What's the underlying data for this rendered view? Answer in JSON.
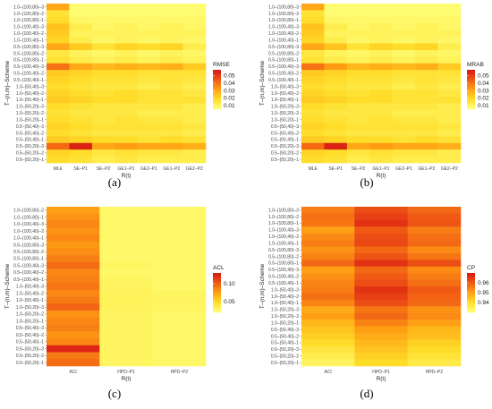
{
  "chart_data": [
    {
      "panel": "(a)",
      "type": "heatmap",
      "xlabel": "R(t)",
      "ylabel": "T–(n,m)–Scheme",
      "legend_title": "RMSE",
      "legend_ticks": [
        0.05,
        0.04,
        0.03,
        0.02,
        0.01
      ],
      "range": [
        0.005,
        0.058
      ],
      "categories": [
        "MLE",
        "SE–P1",
        "SE–P2",
        "GE1–P1",
        "GE2–P1",
        "GE1–P2",
        "GE2–P2"
      ],
      "rows": [
        "1.0–(100,80)–3",
        "1.0–(100,80)–2",
        "1.0–(100,80)–1",
        "1.0–(100,40)–3",
        "1.0–(100,40)–2",
        "1.0–(100,40)–1",
        "0.5–(100,80)–3",
        "0.5–(100,80)–2",
        "0.5–(100,80)–1",
        "0.5–(100,40)–3",
        "0.5–(100,40)–2",
        "0.5–(100,40)–1",
        "1.0–(50,40)–3",
        "1.0–(50,40)–2",
        "1.0–(50,40)–1",
        "1.0–(50,20)–3",
        "1.0–(50,20)–2",
        "1.0–(50,20)–1",
        "0.5–(50,40)–3",
        "0.5–(50,40)–2",
        "0.5–(50,40)–1",
        "0.5–(50,20)–3",
        "0.5–(50,20)–2",
        "0.5–(50,20)–1"
      ],
      "values": [
        [
          0.03,
          0.006,
          0.006,
          0.006,
          0.006,
          0.006,
          0.006
        ],
        [
          0.016,
          0.006,
          0.006,
          0.006,
          0.006,
          0.006,
          0.006
        ],
        [
          0.018,
          0.008,
          0.008,
          0.008,
          0.008,
          0.008,
          0.008
        ],
        [
          0.024,
          0.012,
          0.008,
          0.01,
          0.008,
          0.01,
          0.008
        ],
        [
          0.022,
          0.01,
          0.01,
          0.01,
          0.01,
          0.01,
          0.01
        ],
        [
          0.02,
          0.012,
          0.008,
          0.01,
          0.008,
          0.01,
          0.008
        ],
        [
          0.03,
          0.022,
          0.016,
          0.02,
          0.018,
          0.02,
          0.012
        ],
        [
          0.014,
          0.01,
          0.008,
          0.01,
          0.008,
          0.01,
          0.008
        ],
        [
          0.016,
          0.012,
          0.01,
          0.012,
          0.01,
          0.012,
          0.01
        ],
        [
          0.04,
          0.03,
          0.026,
          0.028,
          0.026,
          0.028,
          0.022
        ],
        [
          0.022,
          0.02,
          0.018,
          0.018,
          0.016,
          0.016,
          0.016
        ],
        [
          0.02,
          0.018,
          0.016,
          0.016,
          0.014,
          0.016,
          0.014
        ],
        [
          0.018,
          0.016,
          0.014,
          0.014,
          0.012,
          0.014,
          0.012
        ],
        [
          0.02,
          0.018,
          0.016,
          0.018,
          0.016,
          0.016,
          0.014
        ],
        [
          0.022,
          0.02,
          0.018,
          0.018,
          0.016,
          0.016,
          0.016
        ],
        [
          0.018,
          0.016,
          0.014,
          0.014,
          0.014,
          0.014,
          0.012
        ],
        [
          0.016,
          0.014,
          0.014,
          0.014,
          0.012,
          0.012,
          0.012
        ],
        [
          0.018,
          0.016,
          0.014,
          0.016,
          0.014,
          0.014,
          0.012
        ],
        [
          0.02,
          0.018,
          0.016,
          0.016,
          0.016,
          0.016,
          0.014
        ],
        [
          0.018,
          0.016,
          0.014,
          0.014,
          0.014,
          0.014,
          0.012
        ],
        [
          0.022,
          0.02,
          0.018,
          0.018,
          0.016,
          0.018,
          0.016
        ],
        [
          0.042,
          0.056,
          0.03,
          0.032,
          0.03,
          0.03,
          0.028
        ],
        [
          0.02,
          0.018,
          0.014,
          0.016,
          0.014,
          0.014,
          0.012
        ],
        [
          0.018,
          0.016,
          0.012,
          0.014,
          0.012,
          0.012,
          0.012
        ]
      ]
    },
    {
      "panel": "(b)",
      "type": "heatmap",
      "xlabel": "R(t)",
      "ylabel": "T–(n,m)–Scheme",
      "legend_title": "MRAB",
      "legend_ticks": [
        0.05,
        0.04,
        0.03,
        0.02,
        0.01
      ],
      "range": [
        0.005,
        0.058
      ],
      "categories": [
        "MLE",
        "SE–P1",
        "SE–P2",
        "GE1–P1",
        "GE2–P1",
        "GE1–P2",
        "GE2–P2"
      ],
      "rows": [
        "1.0–(100,80)–3",
        "1.0–(100,80)–2",
        "1.0–(100,80)–1",
        "1.0–(100,40)–3",
        "1.0–(100,40)–2",
        "1.0–(100,40)–1",
        "0.5–(100,80)–3",
        "0.5–(100,80)–2",
        "0.5–(100,80)–1",
        "0.5–(100,40)–3",
        "0.5–(100,40)–2",
        "0.5–(100,40)–1",
        "1.0–(50,40)–3",
        "1.0–(50,40)–2",
        "1.0–(50,40)–1",
        "1.0–(50,20)–3",
        "1.0–(50,20)–2",
        "1.0–(50,20)–1",
        "0.5–(50,40)–3",
        "0.5–(50,40)–2",
        "0.5–(50,40)–1",
        "0.5–(50,20)–3",
        "0.5–(50,20)–2",
        "0.5–(50,20)–1"
      ],
      "values": [
        [
          0.03,
          0.006,
          0.006,
          0.006,
          0.006,
          0.006,
          0.006
        ],
        [
          0.016,
          0.006,
          0.006,
          0.006,
          0.006,
          0.006,
          0.006
        ],
        [
          0.018,
          0.008,
          0.008,
          0.008,
          0.008,
          0.008,
          0.008
        ],
        [
          0.024,
          0.012,
          0.008,
          0.01,
          0.008,
          0.01,
          0.008
        ],
        [
          0.022,
          0.01,
          0.01,
          0.01,
          0.01,
          0.01,
          0.01
        ],
        [
          0.02,
          0.012,
          0.008,
          0.01,
          0.008,
          0.01,
          0.008
        ],
        [
          0.03,
          0.024,
          0.016,
          0.02,
          0.018,
          0.02,
          0.012
        ],
        [
          0.014,
          0.01,
          0.008,
          0.01,
          0.008,
          0.01,
          0.008
        ],
        [
          0.016,
          0.012,
          0.01,
          0.012,
          0.01,
          0.012,
          0.01
        ],
        [
          0.04,
          0.032,
          0.026,
          0.028,
          0.026,
          0.028,
          0.022
        ],
        [
          0.022,
          0.02,
          0.018,
          0.018,
          0.016,
          0.016,
          0.016
        ],
        [
          0.02,
          0.018,
          0.016,
          0.016,
          0.014,
          0.016,
          0.014
        ],
        [
          0.018,
          0.016,
          0.014,
          0.014,
          0.012,
          0.014,
          0.012
        ],
        [
          0.02,
          0.018,
          0.016,
          0.018,
          0.016,
          0.016,
          0.014
        ],
        [
          0.022,
          0.02,
          0.018,
          0.018,
          0.016,
          0.016,
          0.016
        ],
        [
          0.018,
          0.016,
          0.014,
          0.014,
          0.014,
          0.014,
          0.012
        ],
        [
          0.016,
          0.014,
          0.014,
          0.014,
          0.012,
          0.012,
          0.012
        ],
        [
          0.018,
          0.016,
          0.014,
          0.016,
          0.014,
          0.014,
          0.012
        ],
        [
          0.02,
          0.018,
          0.016,
          0.016,
          0.016,
          0.016,
          0.014
        ],
        [
          0.018,
          0.016,
          0.014,
          0.014,
          0.014,
          0.014,
          0.012
        ],
        [
          0.022,
          0.02,
          0.018,
          0.018,
          0.016,
          0.018,
          0.016
        ],
        [
          0.042,
          0.056,
          0.03,
          0.032,
          0.03,
          0.03,
          0.028
        ],
        [
          0.02,
          0.018,
          0.014,
          0.016,
          0.014,
          0.014,
          0.012
        ],
        [
          0.018,
          0.016,
          0.012,
          0.014,
          0.012,
          0.012,
          0.012
        ]
      ]
    },
    {
      "panel": "(c)",
      "type": "heatmap",
      "xlabel": "R(t)",
      "ylabel": "T–(n,m)–Scheme",
      "legend_title": "ACL",
      "legend_ticks": [
        0.1,
        0.05
      ],
      "range": [
        0.02,
        0.13
      ],
      "categories": [
        "ACI",
        "HPD–P1",
        "HPD–P2"
      ],
      "rows": [
        "1.0–(100,80)–2",
        "1.0–(100,80)–1",
        "1.0–(100,40)–3",
        "1.0–(100,40)–2",
        "1.0–(100,40)–1",
        "0.5–(100,80)–3",
        "0.5–(100,80)–2",
        "0.5–(100,80)–1",
        "0.5–(100,40)–3",
        "0.5–(100,40)–2",
        "0.5–(100,40)–1",
        "1.0–(50,40)–3",
        "1.0–(50,40)–2",
        "1.0–(50,40)–1",
        "1.0–(50,20)–3",
        "1.0–(50,20)–2",
        "1.0–(50,20)–1",
        "0.5–(50,40)–3",
        "0.5–(50,40)–2",
        "0.5–(50,40)–1",
        "0.5–(50,20)–3",
        "0.5–(50,20)–2",
        "0.5–(50,20)–1"
      ],
      "values": [
        [
          0.075,
          0.025,
          0.025
        ],
        [
          0.08,
          0.025,
          0.025
        ],
        [
          0.085,
          0.025,
          0.025
        ],
        [
          0.08,
          0.025,
          0.025
        ],
        [
          0.085,
          0.025,
          0.025
        ],
        [
          0.078,
          0.025,
          0.025
        ],
        [
          0.082,
          0.025,
          0.025
        ],
        [
          0.088,
          0.025,
          0.025
        ],
        [
          0.095,
          0.028,
          0.025
        ],
        [
          0.085,
          0.025,
          0.025
        ],
        [
          0.088,
          0.028,
          0.025
        ],
        [
          0.092,
          0.028,
          0.025
        ],
        [
          0.085,
          0.03,
          0.028
        ],
        [
          0.09,
          0.03,
          0.028
        ],
        [
          0.098,
          0.03,
          0.028
        ],
        [
          0.08,
          0.028,
          0.026
        ],
        [
          0.085,
          0.028,
          0.026
        ],
        [
          0.088,
          0.028,
          0.026
        ],
        [
          0.08,
          0.028,
          0.026
        ],
        [
          0.085,
          0.028,
          0.026
        ],
        [
          0.125,
          0.028,
          0.026
        ],
        [
          0.09,
          0.028,
          0.026
        ],
        [
          0.095,
          0.028,
          0.026
        ]
      ]
    },
    {
      "panel": "(d)",
      "type": "heatmap",
      "xlabel": "R(t)",
      "ylabel": "T–(n,m)–Scheme",
      "legend_title": "CP",
      "legend_ticks": [
        0.96,
        0.95,
        0.94
      ],
      "range": [
        0.93,
        0.97
      ],
      "categories": [
        "ACI",
        "HPD–P1",
        "HPD–P2"
      ],
      "rows": [
        "1.0–(100,80)–3",
        "1.0–(100,80)–2",
        "1.0–(100,80)–1",
        "1.0–(100,40)–3",
        "1.0–(100,40)–2",
        "1.0–(100,40)–1",
        "0.5–(100,80)–3",
        "0.5–(100,80)–2",
        "0.5–(100,80)–1",
        "0.5–(100,40)–3",
        "0.5–(100,40)–2",
        "0.5–(100,40)–1",
        "1.0–(50,40)–3",
        "1.0–(50,40)–2",
        "1.0–(50,40)–1",
        "1.0–(50,20)–3",
        "1.0–(50,20)–2",
        "1.0–(50,20)–1",
        "0.5–(50,40)–3",
        "0.5–(50,40)–2",
        "0.5–(50,40)–1",
        "0.5–(50,20)–3",
        "0.5–(50,20)–2",
        "0.5–(50,20)–1"
      ],
      "values": [
        [
          0.955,
          0.962,
          0.958
        ],
        [
          0.957,
          0.964,
          0.96
        ],
        [
          0.956,
          0.966,
          0.961
        ],
        [
          0.95,
          0.96,
          0.955
        ],
        [
          0.953,
          0.962,
          0.957
        ],
        [
          0.955,
          0.963,
          0.958
        ],
        [
          0.952,
          0.958,
          0.953
        ],
        [
          0.954,
          0.961,
          0.956
        ],
        [
          0.958,
          0.966,
          0.962
        ],
        [
          0.95,
          0.958,
          0.953
        ],
        [
          0.952,
          0.96,
          0.955
        ],
        [
          0.954,
          0.962,
          0.957
        ],
        [
          0.955,
          0.966,
          0.96
        ],
        [
          0.957,
          0.964,
          0.959
        ],
        [
          0.954,
          0.962,
          0.958
        ],
        [
          0.948,
          0.956,
          0.952
        ],
        [
          0.95,
          0.958,
          0.953
        ],
        [
          0.946,
          0.954,
          0.95
        ],
        [
          0.944,
          0.95,
          0.946
        ],
        [
          0.942,
          0.948,
          0.945
        ],
        [
          0.94,
          0.946,
          0.942
        ],
        [
          0.937,
          0.944,
          0.94
        ],
        [
          0.935,
          0.942,
          0.938
        ],
        [
          0.933,
          0.94,
          0.936
        ]
      ]
    }
  ]
}
